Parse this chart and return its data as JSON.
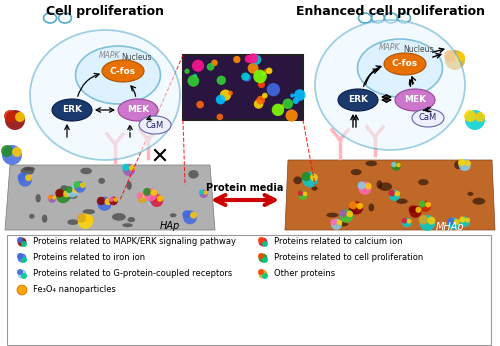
{
  "title_left": "Cell proliferation",
  "title_right": "Enhanced cell proliferation",
  "arrow_label": "Protein media",
  "legend_items_left": [
    {
      "label": "Proteins related to MAPK/ERK signaling pathway",
      "color": "#8B0000"
    },
    {
      "label": "Proteins related to iron ion",
      "color": "#4169E1"
    },
    {
      "label": "Proteins related to G-protein-coupled receptors",
      "color": "#87CEEB"
    }
  ],
  "legend_items_right": [
    {
      "label": "Proteins related to calcium ion",
      "color": "#DC143C"
    },
    {
      "label": "Proteins related to cell proliferation",
      "color": "#228B22"
    },
    {
      "label": "Other proteins",
      "color": "#DAA520"
    }
  ],
  "legend_item_bottom": {
    "label": "Fe₃O₄ nanoparticles",
    "color": "#FFA500"
  },
  "left_scaffold_label": "HAp",
  "right_scaffold_label": "MHAp",
  "cell_components": {
    "nucleus_label": "Nucleus",
    "cfos_label": "C-fos",
    "cfos_color": "#E87000",
    "erk_label": "ERK",
    "erk_color": "#1a3a6e",
    "mek_label": "MEK",
    "mek_color": "#CC77CC",
    "cam_label": "CaM",
    "cam_color": "#EEF0FF",
    "mapk_label": "MAPK"
  },
  "bg_color": "#FFFFFF",
  "legend_border_color": "#999999",
  "title_fontsize": 9,
  "label_fontsize": 6,
  "legend_fontsize": 6,
  "cell_edge_color": "#55AACC",
  "nuc_edge_color": "#55AACC"
}
